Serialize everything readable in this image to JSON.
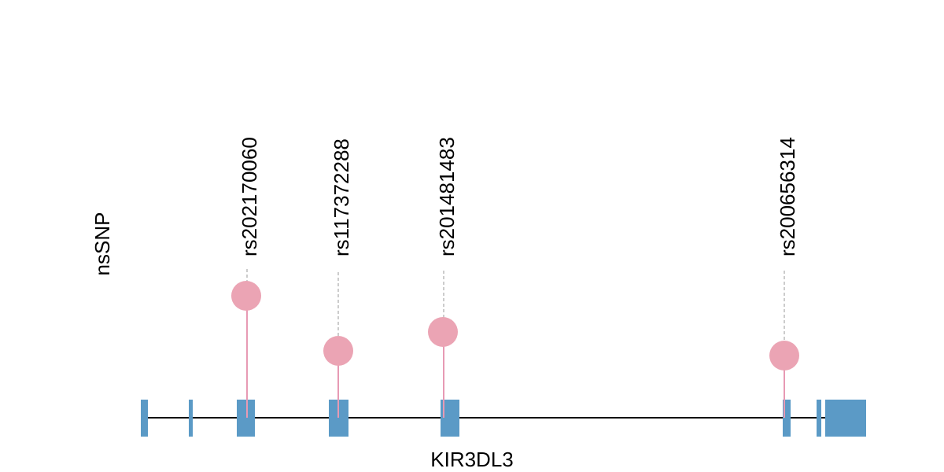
{
  "track_label": "nsSNP",
  "gene": {
    "name": "KIR3DL3",
    "exon_color": "#5b9ac6",
    "backbone_color": "#000000"
  },
  "snp_color": "#eba4b4",
  "stem_color": "#e79ab4",
  "guide_color": "#bbbbbb",
  "snps": [
    {
      "id": "rs202170060"
    },
    {
      "id": "rs117372288"
    },
    {
      "id": "rs201481483"
    },
    {
      "id": "rs200656314"
    }
  ]
}
